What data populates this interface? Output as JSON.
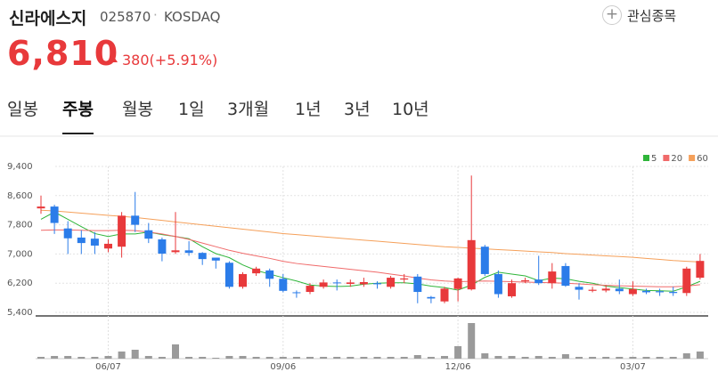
{
  "header": {
    "title": "신라에스지",
    "code": "025870",
    "market": "KOSDAQ",
    "watch_button": "관심종목"
  },
  "price": {
    "current": "6,810",
    "change": "380(+5.91%)"
  },
  "tabs": {
    "items": [
      "일봉",
      "주봉",
      "월봉",
      "1일",
      "3개월",
      "1년",
      "3년",
      "10년"
    ],
    "selected": 1
  },
  "chart_data": {
    "type": "candlestick",
    "categories": [
      null,
      null,
      null,
      null,
      null,
      "06/07",
      null,
      null,
      null,
      null,
      null,
      null,
      null,
      null,
      null,
      null,
      null,
      null,
      "09/06",
      null,
      null,
      null,
      null,
      null,
      null,
      null,
      null,
      null,
      null,
      null,
      null,
      "12/06",
      null,
      null,
      null,
      null,
      null,
      null,
      null,
      null,
      null,
      null,
      null,
      null,
      "03/07",
      null,
      null,
      null,
      null,
      null
    ],
    "open": [
      8250,
      8300,
      7700,
      7450,
      7420,
      7150,
      7200,
      8050,
      7650,
      7400,
      7050,
      7100,
      7030,
      6900,
      6760,
      6100,
      6470,
      6550,
      6320,
      5950,
      5960,
      6100,
      6220,
      6180,
      6170,
      6200,
      6100,
      6300,
      6380,
      5820,
      5700,
      6040,
      6030,
      7200,
      6450,
      5840,
      6250,
      6300,
      6200,
      6670,
      6100,
      5990,
      6000,
      6050,
      5900,
      5990,
      5980,
      5960,
      5930,
      6350
    ],
    "high": [
      8600,
      8350,
      7900,
      7650,
      7600,
      7400,
      8150,
      8700,
      7850,
      7450,
      8150,
      7350,
      7050,
      6900,
      6800,
      6500,
      6650,
      6600,
      6450,
      6000,
      6200,
      6300,
      6300,
      6300,
      6350,
      6250,
      6400,
      6450,
      6450,
      5850,
      6100,
      6350,
      9150,
      7250,
      6550,
      6300,
      6350,
      6950,
      6750,
      6750,
      6200,
      6100,
      6150,
      6300,
      6250,
      6050,
      6050,
      6100,
      6650,
      7000
    ],
    "low": [
      8100,
      7550,
      7000,
      7000,
      7000,
      7050,
      6900,
      7600,
      7300,
      6800,
      7000,
      6950,
      6700,
      6600,
      6050,
      6050,
      6400,
      6100,
      5950,
      5800,
      5900,
      6050,
      6000,
      6100,
      6100,
      6050,
      6050,
      6200,
      5650,
      5650,
      5650,
      5700,
      6000,
      6400,
      5800,
      5800,
      6200,
      6150,
      6050,
      6100,
      5750,
      5950,
      5950,
      5900,
      5850,
      5900,
      5850,
      5850,
      5850,
      6300
    ],
    "close": [
      8300,
      7850,
      7430,
      7300,
      7230,
      7280,
      8050,
      7800,
      7420,
      7010,
      7100,
      7030,
      6860,
      6820,
      6100,
      6450,
      6600,
      6320,
      5990,
      5930,
      6130,
      6220,
      6200,
      6220,
      6230,
      6170,
      6350,
      6330,
      5960,
      5780,
      6050,
      6330,
      7380,
      6450,
      5900,
      6200,
      6280,
      6200,
      6520,
      6130,
      6020,
      6020,
      6050,
      5980,
      6040,
      5950,
      5950,
      5930,
      6600,
      6810
    ],
    "volume": [
      2,
      3,
      3,
      2,
      2,
      3,
      8,
      10,
      3,
      2,
      16,
      2,
      2,
      1,
      3,
      3,
      2,
      2,
      2,
      2,
      2,
      2,
      2,
      2,
      2,
      2,
      2,
      2,
      4,
      2,
      3,
      14,
      40,
      6,
      3,
      3,
      2,
      3,
      2,
      5,
      2,
      2,
      2,
      2,
      2,
      2,
      2,
      2,
      6,
      8
    ],
    "volume_lim": [
      0,
      50
    ],
    "up_color": "#e8393b",
    "down_color": "#2b7ce9",
    "volume_color": "#9a9a9a",
    "series": [
      {
        "name": "5",
        "color": "#2fb53a",
        "values": [
          7950,
          8150,
          7950,
          7750,
          7560,
          7480,
          7550,
          7550,
          7600,
          7530,
          7480,
          7420,
          7200,
          7010,
          6900,
          6700,
          6550,
          6450,
          6350,
          6260,
          6150,
          6120,
          6110,
          6120,
          6170,
          6200,
          6210,
          6210,
          6180,
          6120,
          6080,
          6010,
          6150,
          6360,
          6500,
          6450,
          6400,
          6270,
          6340,
          6320,
          6250,
          6200,
          6120,
          6080,
          6040,
          6000,
          5990,
          5980,
          6100,
          6250
        ]
      },
      {
        "name": "20",
        "color": "#f06a6a",
        "values": [
          7650,
          7660,
          7660,
          7650,
          7640,
          7640,
          7650,
          7640,
          7600,
          7550,
          7480,
          7400,
          7300,
          7200,
          7100,
          7020,
          6950,
          6880,
          6800,
          6740,
          6700,
          6660,
          6620,
          6580,
          6540,
          6500,
          6450,
          6400,
          6340,
          6290,
          6260,
          6240,
          6250,
          6260,
          6250,
          6240,
          6230,
          6220,
          6210,
          6200,
          6180,
          6160,
          6140,
          6130,
          6120,
          6110,
          6100,
          6100,
          6120,
          6160
        ]
      },
      {
        "name": "60",
        "color": "#f5a05a",
        "values": [
          8200,
          8180,
          8150,
          8120,
          8090,
          8060,
          8030,
          8000,
          7960,
          7920,
          7880,
          7840,
          7800,
          7760,
          7720,
          7680,
          7640,
          7600,
          7560,
          7530,
          7500,
          7470,
          7440,
          7410,
          7380,
          7350,
          7320,
          7290,
          7260,
          7230,
          7200,
          7180,
          7160,
          7140,
          7120,
          7100,
          7080,
          7060,
          7040,
          7010,
          6990,
          6970,
          6950,
          6930,
          6910,
          6880,
          6850,
          6820,
          6800,
          6780
        ]
      }
    ],
    "ylim": [
      5400,
      9400
    ],
    "yticks": [
      {
        "value": 9400,
        "label": "9,400"
      },
      {
        "value": 8600,
        "label": "8,600"
      },
      {
        "value": 7800,
        "label": "7,800"
      },
      {
        "value": 7000,
        "label": "7,000"
      },
      {
        "value": 6200,
        "label": "6,200"
      },
      {
        "value": 5400,
        "label": "5,400"
      }
    ],
    "grid": true
  }
}
